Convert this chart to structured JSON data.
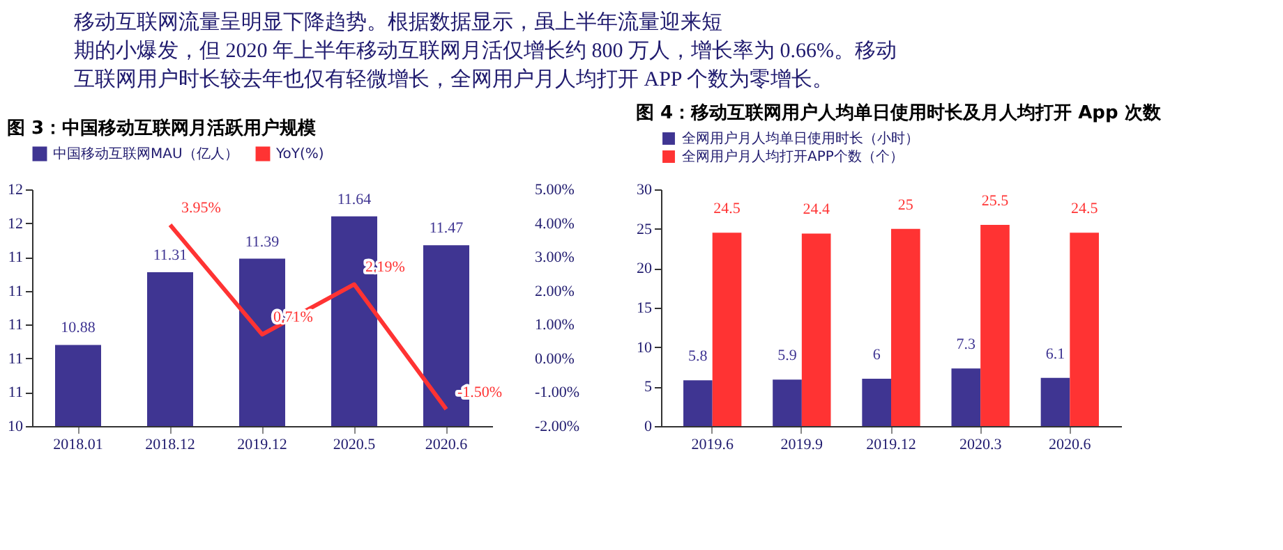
{
  "chart_data": [
    {
      "type": "other",
      "annotations": [
        "移动互联网流量呈明显下降趋势。根据数据显示，虽上半年流量迎来短",
        "期的小爆发，但 2020 年上半年移动互联网月活仅增长约 800 万人，增长率为 0.66%。移动",
        "互联网用户时长较去年也仅有轻微增长，全网用户月人均打开 APP 个数为零增长。"
      ]
    },
    {
      "type": "bar",
      "title": "图 3：中国移动互联网月活跃用户规模",
      "categories": [
        "2018.01",
        "2018.12",
        "2019.12",
        "2020.5",
        "2020.6"
      ],
      "series": [
        {
          "name": "中国移动互联网MAU（亿人）",
          "color": "#3f3592",
          "values": [
            10.88,
            11.31,
            11.39,
            11.64,
            11.47
          ]
        },
        {
          "name": "YoY(%)",
          "type": "line",
          "axis": "y2",
          "color": "#ff3333",
          "values": [
            null,
            3.95,
            0.71,
            2.19,
            -1.5
          ],
          "value_labels": [
            null,
            "3.95%",
            "0.71%",
            "2.19%",
            "-1.50%"
          ]
        }
      ],
      "ylim": [
        10.4,
        11.8
      ],
      "yticks": [
        {
          "value": 10.4,
          "label": "10"
        },
        {
          "value": 10.6,
          "label": "11"
        },
        {
          "value": 10.8,
          "label": "11"
        },
        {
          "value": 11.0,
          "label": "11"
        },
        {
          "value": 11.2,
          "label": "11"
        },
        {
          "value": 11.4,
          "label": "11"
        },
        {
          "value": 11.6,
          "label": "12"
        },
        {
          "value": 11.8,
          "label": "12"
        }
      ],
      "y2lim": [
        -2,
        5
      ],
      "y2ticks": [
        {
          "value": -2,
          "label": "-2.00%"
        },
        {
          "value": -1,
          "label": "-1.00%"
        },
        {
          "value": 0,
          "label": "0.00%"
        },
        {
          "value": 1,
          "label": "1.00%"
        },
        {
          "value": 2,
          "label": "2.00%"
        },
        {
          "value": 3,
          "label": "3.00%"
        },
        {
          "value": 4,
          "label": "4.00%"
        },
        {
          "value": 5,
          "label": "5.00%"
        }
      ],
      "data_labels": true,
      "legend": "top",
      "grid": false
    },
    {
      "type": "bar",
      "title": "图 4：移动互联网用户人均单日使用时长及月人均打开 App 次数",
      "categories": [
        "2019.6",
        "2019.9",
        "2019.12",
        "2020.3",
        "2020.6"
      ],
      "series": [
        {
          "name": "全网用户月人均单日使用时长（小时）",
          "color": "#3f3592",
          "values": [
            5.8,
            5.9,
            6,
            7.3,
            6.1
          ]
        },
        {
          "name": "全网用户月人均打开APP个数（个）",
          "color": "#ff3333",
          "values": [
            24.5,
            24.4,
            25,
            25.5,
            24.5
          ]
        }
      ],
      "ylim": [
        0,
        30
      ],
      "yticks": [
        0,
        5,
        10,
        15,
        20,
        25,
        30
      ],
      "data_labels": true,
      "legend": "top",
      "grid": false
    }
  ]
}
